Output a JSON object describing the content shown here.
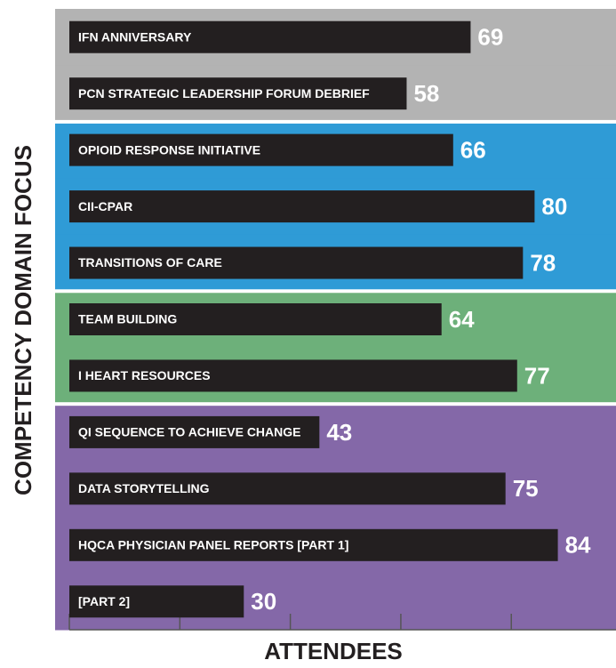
{
  "chart_data": {
    "type": "barh",
    "xlabel": "ATTENDEES",
    "ylabel": "COMPETENCY DOMAIN FOCUS",
    "categories": [
      "IFN ANNIVERSARY",
      "PCN STRATEGIC LEADERSHIP FORUM DEBRIEF",
      "OPIOID RESPONSE INITIATIVE",
      "CII-CPAR",
      "TRANSITIONS OF CARE",
      "TEAM BUILDING",
      "I HEART RESOURCES",
      "QI SEQUENCE TO ACHIEVE CHANGE",
      "DATA STORYTELLING",
      "HQCA PHYSICIAN PANEL REPORTS [PART 1]",
      "[PART 2]"
    ],
    "values": [
      69,
      58,
      66,
      80,
      78,
      64,
      77,
      43,
      75,
      84,
      30
    ],
    "color": "#231f20",
    "row_colors": [
      "#b3b3b3",
      "#b3b3b3",
      "#2f9bd6",
      "#2f9bd6",
      "#2f9bd6",
      "#6db07a",
      "#6db07a",
      "#8468a8",
      "#8468a8",
      "#8468a8",
      "#8468a8"
    ],
    "xlim": [
      0,
      94
    ],
    "xticks": [
      0,
      19,
      38,
      57,
      76
    ]
  }
}
